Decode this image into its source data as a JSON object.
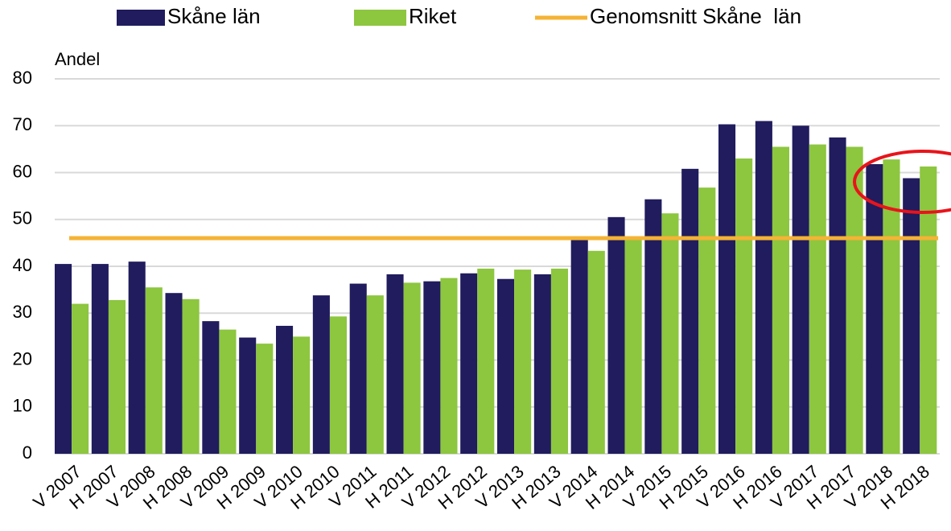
{
  "chart_data": {
    "type": "bar",
    "y_axis_label": "Andel",
    "categories": [
      "V 2007",
      "H 2007",
      "V 2008",
      "H 2008",
      "V 2009",
      "H 2009",
      "V 2010",
      "H 2010",
      "V 2011",
      "H 2011",
      "V 2012",
      "H 2012",
      "V 2013",
      "H 2013",
      "V 2014",
      "H 2014",
      "V 2015",
      "H 2015",
      "V 2016",
      "H 2016",
      "V 2017",
      "H 2017",
      "V 2018",
      "H 2018"
    ],
    "series": [
      {
        "name": "Skåne län",
        "color": "#201c5e",
        "values": [
          40.5,
          40.5,
          41,
          34.3,
          28.3,
          24.8,
          27.3,
          33.8,
          36.3,
          38.3,
          36.8,
          38.5,
          37.3,
          38.3,
          46,
          50.5,
          54.3,
          60.8,
          70.3,
          71,
          70,
          67.5,
          61.8,
          58.8
        ]
      },
      {
        "name": "Riket",
        "color": "#8dc63f",
        "values": [
          32,
          32.8,
          35.5,
          33,
          26.5,
          23.5,
          25,
          29.3,
          33.8,
          36.5,
          37.5,
          39.5,
          39.3,
          39.5,
          43.3,
          46,
          51.3,
          56.8,
          63,
          65.5,
          66,
          65.5,
          62.8,
          61.3
        ]
      }
    ],
    "average": {
      "name": "Genomsnitt Skåne  län",
      "color": "#f5b335",
      "value": 46
    },
    "ylim": [
      0,
      80
    ],
    "yticks": [
      0,
      10,
      20,
      30,
      40,
      50,
      60,
      70,
      80
    ],
    "grid": true
  }
}
